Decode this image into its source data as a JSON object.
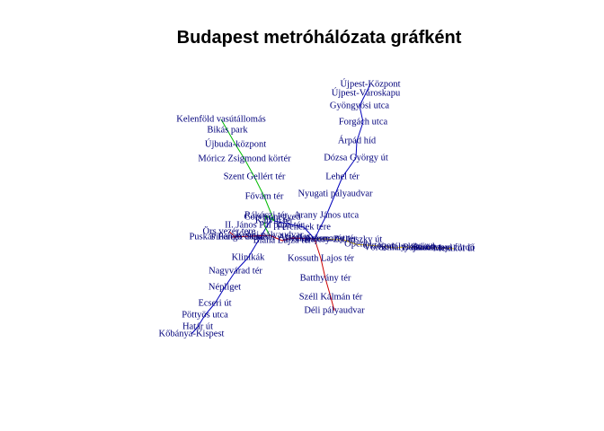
{
  "title": "Budapest metróhálózata gráfként",
  "colors": {
    "m1": "#e3c000",
    "m2": "#cc0000",
    "m3": "#0000bb",
    "m4": "#00bb00",
    "label": "#00007a"
  },
  "lines": [
    {
      "id": "m3",
      "color": "#0000bb",
      "stations": [
        "Újpest-Központ",
        "Újpest-Városkapu",
        "Gyöngyösi utca",
        "Forgách utca",
        "Árpád híd",
        "Dózsa György út",
        "Lehel tér",
        "Nyugati pályaudvar",
        "Arany János utca",
        "Deák Ferenc tér",
        "Ferenciek tere",
        "Kálvin tér",
        "Corvin-negyed",
        "Klinikák",
        "Nagyvárad tér",
        "Népliget",
        "Ecseri út",
        "Pöttyös utca",
        "Határ út",
        "Kőbánya-Kispest"
      ]
    },
    {
      "id": "m2",
      "color": "#cc0000",
      "stations": [
        "Déli pályaudvar",
        "Széll Kálmán tér",
        "Batthyány tér",
        "Kossuth Lajos tér",
        "Deák Ferenc tér",
        "Astoria",
        "Blaha Lujza tér",
        "Keleti pályaudvar",
        "Puskás Ferenc Stadion",
        "Pillangó utca",
        "Örs vezér tere"
      ]
    },
    {
      "id": "m4",
      "color": "#00bb00",
      "stations": [
        "Kelenföld vasútállomás",
        "Bikás park",
        "Újbuda-központ",
        "Móricz Zsigmond körtér",
        "Szent Gellért tér",
        "Fővám tér",
        "Kálvin tér",
        "Rákóczi tér",
        "II. János Pál pápa tér",
        "Keleti pályaudvar"
      ]
    },
    {
      "id": "m1",
      "color": "#e3c000",
      "stations": [
        "Vörösmarty tér",
        "Deák Ferenc tér",
        "Bajcsy-Zsilinszky út",
        "Opera",
        "Oktogon",
        "Vörösmarty utca",
        "Kodály körönd",
        "Bajza utca",
        "Hősök tere",
        "Széchenyi fürdő",
        "Mexikói út"
      ]
    }
  ],
  "labels": [
    {
      "key": "ujpest_kozpont",
      "text": "Újpest-Központ"
    },
    {
      "key": "ujpest_varoskapu",
      "text": "Újpest-Városkapu"
    },
    {
      "key": "gyongyosi",
      "text": "Gyöngyösi utca"
    },
    {
      "key": "forgach",
      "text": "Forgách utca"
    },
    {
      "key": "arpad",
      "text": "Árpád híd"
    },
    {
      "key": "dozsa",
      "text": "Dózsa György út"
    },
    {
      "key": "lehel",
      "text": "Lehel tér"
    },
    {
      "key": "nyugati",
      "text": "Nyugati pályaudvar"
    },
    {
      "key": "arany",
      "text": "Arany János utca"
    },
    {
      "key": "kelenfold",
      "text": "Kelenföld vasútállomás"
    },
    {
      "key": "bikas",
      "text": "Bikás park"
    },
    {
      "key": "ujbuda",
      "text": "Újbuda-központ"
    },
    {
      "key": "moricz",
      "text": "Móricz Zsigmond körtér"
    },
    {
      "key": "gellert",
      "text": "Szent Gellért tér"
    },
    {
      "key": "fovam",
      "text": "Fővám tér"
    },
    {
      "key": "rakoczi",
      "text": "Rákóczi tér"
    },
    {
      "key": "kalvin",
      "text": "Kálvin tér"
    },
    {
      "key": "corvin",
      "text": "Corvin-negyed"
    },
    {
      "key": "ferenciek",
      "text": "Ferenciek tere"
    },
    {
      "key": "janospal",
      "text": "II. János Pál pápa tér"
    },
    {
      "key": "orsvezer",
      "text": "Örs vezér tere"
    },
    {
      "key": "puskas",
      "text": "Puskás Ferenc Stadion"
    },
    {
      "key": "pillango",
      "text": "Pillangó utca"
    },
    {
      "key": "keleti",
      "text": "Keleti pályaudvar"
    },
    {
      "key": "blaha",
      "text": "Blaha Lujza tér"
    },
    {
      "key": "astoria",
      "text": "Astoria"
    },
    {
      "key": "deak",
      "text": "Deák Ferenc tér"
    },
    {
      "key": "vorosmarty_ter",
      "text": "Vörösmarty tér"
    },
    {
      "key": "bajcsy",
      "text": "Bajcsy-Zsilinszky út"
    },
    {
      "key": "opera",
      "text": "Opera"
    },
    {
      "key": "oktogon",
      "text": "Oktogon"
    },
    {
      "key": "vorosmarty_u",
      "text": "Vörösmarty utca"
    },
    {
      "key": "kodaly",
      "text": "Kodály körönd"
    },
    {
      "key": "bajza",
      "text": "Bajza utca"
    },
    {
      "key": "hosok",
      "text": "Hősök tere"
    },
    {
      "key": "szechenyi",
      "text": "Széchenyi fürdő"
    },
    {
      "key": "mexikoi",
      "text": "Mexikói út"
    },
    {
      "key": "klinikak",
      "text": "Klinikák"
    },
    {
      "key": "kossuth",
      "text": "Kossuth Lajos tér"
    },
    {
      "key": "nagyvarad",
      "text": "Nagyvárad tér"
    },
    {
      "key": "batthyany",
      "text": "Batthyány tér"
    },
    {
      "key": "nepliget",
      "text": "Népliget"
    },
    {
      "key": "szell",
      "text": "Széll Kálmán tér"
    },
    {
      "key": "deli",
      "text": "Déli pályaudvar"
    },
    {
      "key": "ecseri",
      "text": "Ecseri út"
    },
    {
      "key": "pottyos",
      "text": "Pöttyös utca"
    },
    {
      "key": "hatar",
      "text": "Határ út"
    },
    {
      "key": "kobanya",
      "text": "Kőbánya-Kispest"
    }
  ]
}
